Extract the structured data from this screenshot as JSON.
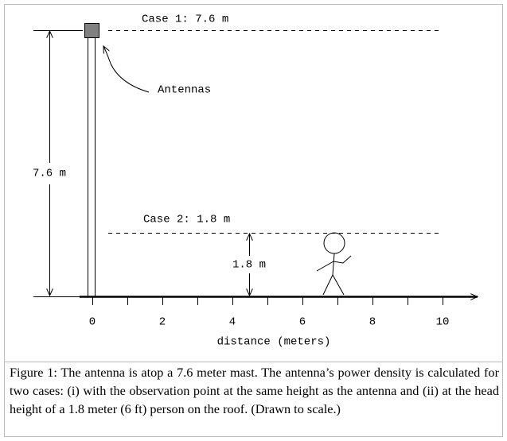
{
  "labels": {
    "case1": "Case 1: 7.6 m",
    "case2": "Case 2: 1.8 m",
    "antennas": "Antennas",
    "mast_height": "7.6 m",
    "person_height": "1.8 m"
  },
  "axis": {
    "ticks": [
      0,
      2,
      4,
      6,
      8,
      10
    ],
    "label": "distance (meters)"
  },
  "caption": "Figure 1: The antenna is atop a 7.6 meter mast. The antenna’s power density is calculated for two cases: (i) with the observation point at the same height as the antenna and (ii) at the head height of a 1.8 meter (6 ft) person on the roof. (Drawn to scale.)"
}
